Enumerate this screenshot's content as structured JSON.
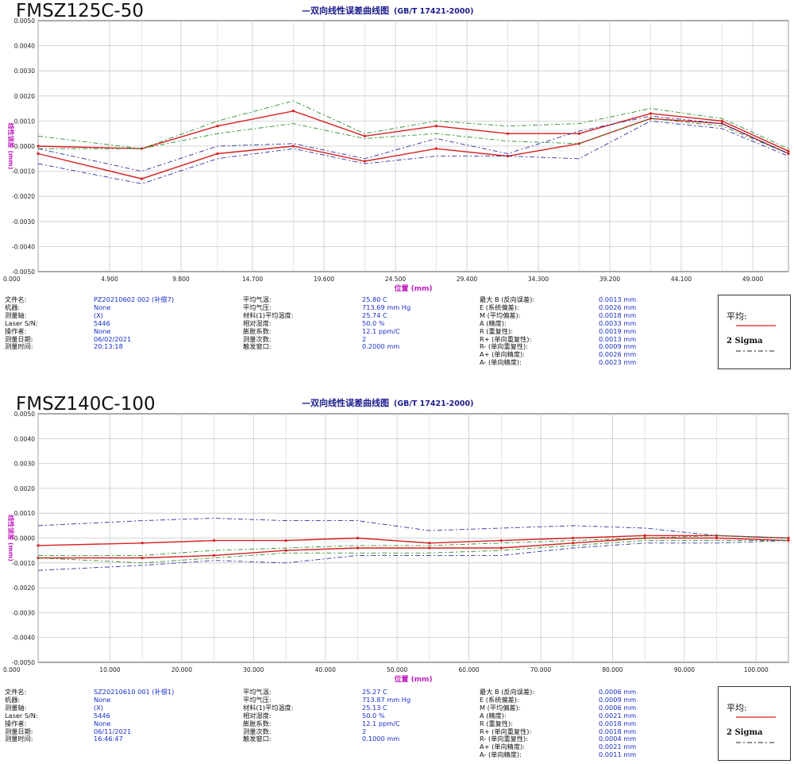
{
  "chart_data": [
    {
      "type": "line",
      "model": "FMSZ125C-50",
      "title": "—双向线性误差曲线图",
      "standard": "(GB/T 17421-2000)",
      "xlabel": "位置 (mm)",
      "ylabel": "线性误差 (mm)",
      "xlim": [
        0,
        51.45
      ],
      "ylim": [
        -0.005,
        0.005
      ],
      "xticks": [
        0,
        4.9,
        9.8,
        14.7,
        19.6,
        24.5,
        29.4,
        34.3,
        39.2,
        44.1,
        49.0
      ],
      "xtick_labels": [
        "0.000",
        "4.900",
        "9.800",
        "14.700",
        "19.600",
        "24.500",
        "29.400",
        "34.300",
        "39.200",
        "44.100",
        "49.000"
      ],
      "yticks": [
        -0.005,
        -0.004,
        -0.003,
        -0.002,
        -0.001,
        0,
        0.001,
        0.002,
        0.003,
        0.004,
        0.005
      ],
      "ytick_labels": [
        "-0.0050",
        "-0.0040",
        "-0.0030",
        "-0.0020",
        "-0.0010",
        "0.0000",
        "0.0010",
        "0.0020",
        "0.0030",
        "0.0040",
        "0.0050"
      ],
      "grid": true,
      "colors": {
        "mean": "#d62020",
        "sigma_green": "#2e8b2e",
        "sigma_blue": "#3030a0"
      },
      "x": [
        0,
        7.1,
        12.3,
        17.5,
        22.4,
        27.3,
        32.2,
        37.1,
        42.0,
        46.9,
        51.45
      ],
      "series": [
        {
          "role": "mean",
          "values": [
            0.0,
            -0.0001,
            0.0008,
            0.0014,
            0.0004,
            0.0008,
            0.0005,
            0.0005,
            0.0013,
            0.001,
            -0.0002
          ]
        },
        {
          "role": "mean",
          "values": [
            -0.0003,
            -0.0013,
            -0.0003,
            0.0,
            -0.0006,
            -0.0001,
            -0.0004,
            0.0001,
            0.0011,
            0.0009,
            -0.0003
          ]
        },
        {
          "role": "sigma_green",
          "values": [
            0.0004,
            -0.0001,
            0.001,
            0.0018,
            0.0005,
            0.001,
            0.0008,
            0.0009,
            0.0015,
            0.0011,
            -0.0001
          ]
        },
        {
          "role": "sigma_green",
          "values": [
            -0.0001,
            -0.0001,
            0.0005,
            0.0009,
            0.0003,
            0.0005,
            0.0002,
            0.0001,
            0.0011,
            0.0008,
            -0.0003
          ]
        },
        {
          "role": "sigma_blue",
          "values": [
            -0.0001,
            -0.001,
            0.0,
            0.0001,
            -0.0005,
            0.0003,
            -0.0003,
            0.0006,
            0.0012,
            0.0009,
            -0.0003
          ]
        },
        {
          "role": "sigma_blue",
          "values": [
            -0.0007,
            -0.0015,
            -0.0005,
            -0.0001,
            -0.0007,
            -0.0004,
            -0.0004,
            -0.0005,
            0.001,
            0.0007,
            -0.0004
          ]
        }
      ],
      "legend": {
        "mean": "平均:",
        "sigma": "2 Sigma"
      },
      "info": {
        "col1": [
          {
            "label": "文件名:",
            "value": "PZ20210602 002 (补偿7)"
          },
          {
            "label": "机器:",
            "value": "None"
          },
          {
            "label": "测量轴:",
            "value": "(X)"
          },
          {
            "label": "Laser S/N:",
            "value": "5446"
          },
          {
            "label": "操作者:",
            "value": "None"
          },
          {
            "label": "测量日期:",
            "value": "06/02/2021"
          },
          {
            "label": "测量时间:",
            "value": "20:13:18"
          }
        ],
        "col2": [
          {
            "label": "平均气温:",
            "value": "25.80 C"
          },
          {
            "label": "平均气压:",
            "value": "713.69 mm Hg"
          },
          {
            "label": "材料(1)平均温度:",
            "value": "25.74 C"
          },
          {
            "label": "相对湿度:",
            "value": "50.0 %"
          },
          {
            "label": "膨胀系数:",
            "value": "12.1 ppm/C"
          },
          {
            "label": "测量次数:",
            "value": "2"
          },
          {
            "label": "触发窗口:",
            "value": "0.2000 mm"
          }
        ],
        "col3": [
          {
            "label": "最大 B (反向误差):",
            "value": "0.0013 mm"
          },
          {
            "label": "E (系统偏差):",
            "value": "0.0026 mm"
          },
          {
            "label": "M (平均偏差):",
            "value": "0.0018 mm"
          },
          {
            "label": "A (精度):",
            "value": "0.0033 mm"
          },
          {
            "label": "R (重复性):",
            "value": "0.0019 mm"
          },
          {
            "label": "R+ (单向重复性):",
            "value": "0.0013 mm"
          },
          {
            "label": "R- (单向重复性):",
            "value": "0.0009 mm"
          },
          {
            "label": "A+ (单向精度):",
            "value": "0.0026 mm"
          },
          {
            "label": "A- (单向精度):",
            "value": "0.0023 mm"
          }
        ]
      }
    },
    {
      "type": "line",
      "model": "FMSZ140C-100",
      "title": "—双向线性误差曲线图",
      "standard": "(GB/T 17421-2000)",
      "xlabel": "位置 (mm)",
      "ylabel": "线性误差 (mm)",
      "xlim": [
        0,
        104.5
      ],
      "ylim": [
        -0.005,
        0.005
      ],
      "xticks": [
        0,
        10,
        20,
        30,
        40,
        50,
        60,
        70,
        80,
        90,
        100
      ],
      "xtick_labels": [
        "0.000",
        "10.000",
        "20.000",
        "30.000",
        "40.000",
        "50.000",
        "60.000",
        "70.000",
        "80.000",
        "90.000",
        "100.000"
      ],
      "yticks": [
        -0.005,
        -0.004,
        -0.003,
        -0.002,
        -0.001,
        0,
        0.001,
        0.002,
        0.003,
        0.004,
        0.005
      ],
      "ytick_labels": [
        "-0.0050",
        "-0.0040",
        "-0.0030",
        "-0.0020",
        "-0.0010",
        "0.0000",
        "0.0010",
        "0.0020",
        "0.0030",
        "0.0040",
        "0.0050"
      ],
      "grid": true,
      "colors": {
        "mean": "#d62020",
        "sigma_green": "#2e8b2e",
        "sigma_blue": "#3030a0"
      },
      "x": [
        0,
        14.5,
        24.5,
        34.5,
        44.5,
        54.5,
        64.5,
        74.5,
        84.5,
        94.5,
        104.5
      ],
      "series": [
        {
          "role": "mean",
          "values": [
            -0.0003,
            -0.0002,
            -0.0001,
            -0.0001,
            0.0,
            -0.0002,
            -0.0001,
            0.0,
            0.0001,
            0.0001,
            0.0
          ]
        },
        {
          "role": "mean",
          "values": [
            -0.0008,
            -0.0008,
            -0.0007,
            -0.0005,
            -0.0004,
            -0.0004,
            -0.0004,
            -0.0002,
            0.0,
            0.0,
            -0.0001
          ]
        },
        {
          "role": "sigma_blue",
          "values": [
            0.0005,
            0.0007,
            0.0008,
            0.0007,
            0.0007,
            0.0003,
            0.0004,
            0.0005,
            0.0004,
            0.0001,
            0.0
          ]
        },
        {
          "role": "sigma_blue",
          "values": [
            -0.0013,
            -0.0011,
            -0.0009,
            -0.001,
            -0.0007,
            -0.0007,
            -0.0007,
            -0.0004,
            -0.0002,
            -0.0002,
            -0.0001
          ]
        },
        {
          "role": "sigma_green",
          "values": [
            -0.0007,
            -0.0007,
            -0.0005,
            -0.0004,
            -0.0003,
            -0.0003,
            -0.0002,
            -0.0001,
            0.0,
            0.0001,
            0.0
          ]
        },
        {
          "role": "sigma_green",
          "values": [
            -0.0008,
            -0.001,
            -0.0008,
            -0.0006,
            -0.0006,
            -0.0006,
            -0.0005,
            -0.0003,
            -0.0001,
            -0.0001,
            -0.0001
          ]
        }
      ],
      "legend": {
        "mean": "平均:",
        "sigma": "2 Sigma"
      },
      "info": {
        "col1": [
          {
            "label": "文件名:",
            "value": "SZ20210610 001 (补偿1)"
          },
          {
            "label": "机器:",
            "value": "None"
          },
          {
            "label": "测量轴:",
            "value": "(X)"
          },
          {
            "label": "Laser S/N:",
            "value": "5446"
          },
          {
            "label": "操作者:",
            "value": "None"
          },
          {
            "label": "测量日期:",
            "value": "06/11/2021"
          },
          {
            "label": "测量时间:",
            "value": "16:46:47"
          }
        ],
        "col2": [
          {
            "label": "平均气温:",
            "value": "25.27 C"
          },
          {
            "label": "平均气压:",
            "value": "713.87 mm Hg"
          },
          {
            "label": "材料(1)平均温度:",
            "value": "25.13 C"
          },
          {
            "label": "相对湿度:",
            "value": "50.0 %"
          },
          {
            "label": "膨胀系数:",
            "value": "12.1 ppm/C"
          },
          {
            "label": "测量次数:",
            "value": "2"
          },
          {
            "label": "触发窗口:",
            "value": "0.1000 mm"
          }
        ],
        "col3": [
          {
            "label": "最大 B (反向误差):",
            "value": "0.0006 mm"
          },
          {
            "label": "E (系统偏差):",
            "value": "0.0009 mm"
          },
          {
            "label": "M (平均偏差):",
            "value": "0.0006 mm"
          },
          {
            "label": "A (精度):",
            "value": "0.0021 mm"
          },
          {
            "label": "R (重复性):",
            "value": "0.0018 mm"
          },
          {
            "label": "R+ (单向重复性):",
            "value": "0.0018 mm"
          },
          {
            "label": "R- (单向重复性):",
            "value": "0.0004 mm"
          },
          {
            "label": "A+ (单向精度):",
            "value": "0.0021 mm"
          },
          {
            "label": "A- (单向精度):",
            "value": "0.0011 mm"
          }
        ]
      }
    }
  ]
}
